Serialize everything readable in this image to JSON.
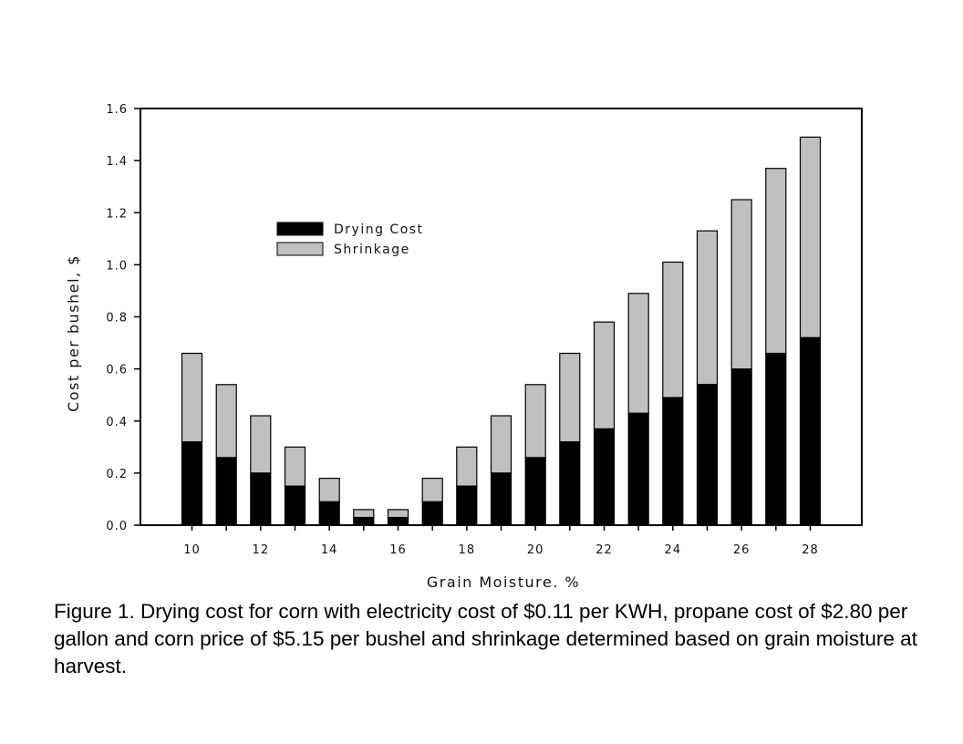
{
  "chart_data": {
    "type": "bar",
    "stacked": true,
    "x": [
      10,
      11,
      12,
      13,
      14,
      15,
      16,
      17,
      18,
      19,
      20,
      21,
      22,
      23,
      24,
      25,
      26,
      27,
      28
    ],
    "x_tick_labels": [
      "10",
      "12",
      "14",
      "16",
      "18",
      "20",
      "22",
      "24",
      "26",
      "28"
    ],
    "y_tick_labels": [
      "0.0",
      "0.2",
      "0.4",
      "0.6",
      "0.8",
      "1.0",
      "1.2",
      "1.4",
      "1.6"
    ],
    "series": [
      {
        "name": "Drying Cost",
        "color": "#000000",
        "values": [
          0.32,
          0.26,
          0.2,
          0.15,
          0.09,
          0.03,
          0.03,
          0.09,
          0.15,
          0.2,
          0.26,
          0.32,
          0.37,
          0.43,
          0.49,
          0.54,
          0.6,
          0.66,
          0.72
        ]
      },
      {
        "name": "Shrinkage",
        "color": "#c0c0c0",
        "values": [
          0.34,
          0.28,
          0.22,
          0.15,
          0.09,
          0.03,
          0.03,
          0.09,
          0.15,
          0.22,
          0.28,
          0.34,
          0.41,
          0.46,
          0.52,
          0.59,
          0.65,
          0.71,
          0.77
        ]
      }
    ],
    "xlabel": "Grain Moisture. %",
    "ylabel": "Cost per bushel, $",
    "xlim": [
      8.5,
      29.5
    ],
    "ylim": [
      0,
      1.6
    ],
    "grid": false,
    "legend_position": "upper-left"
  },
  "caption": "Figure 1. Drying cost for corn with electricity cost of $0.11 per KWH, propane cost of $2.80 per gallon and corn price of $5.15 per bushel and shrinkage determined based on grain moisture at harvest."
}
